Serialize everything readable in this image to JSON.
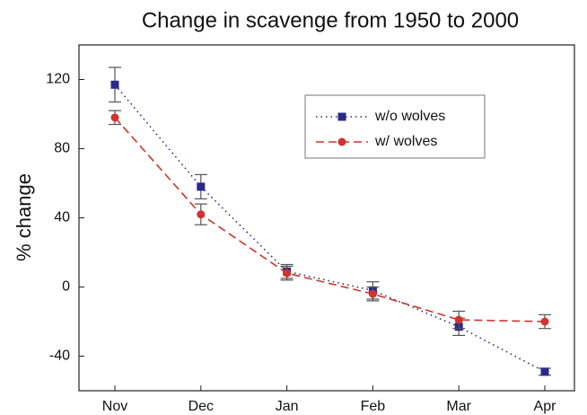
{
  "chart_data": {
    "type": "line",
    "title": "Change in scavenge from 1950 to 2000",
    "y_label": "% change",
    "categories": [
      "Nov",
      "Dec",
      "Jan",
      "Feb",
      "Mar",
      "Apr"
    ],
    "series": [
      {
        "name": "w/o wolves",
        "color": "#2a2a8c",
        "marker": "square",
        "dash": "dotted",
        "values": [
          117,
          58,
          9,
          -2,
          -23,
          -49
        ],
        "errors": [
          10,
          7,
          4,
          5,
          5,
          2
        ]
      },
      {
        "name": "w/ wolves",
        "color": "#d0342c",
        "marker": "circle",
        "dash": "dashed",
        "values": [
          98,
          42,
          8,
          -4,
          -19,
          -20
        ],
        "errors": [
          4,
          6,
          4,
          4,
          5,
          4
        ]
      }
    ],
    "ylim": [
      -60,
      140
    ],
    "yticks": [
      -40,
      0,
      40,
      80,
      120
    ],
    "grid": false
  }
}
